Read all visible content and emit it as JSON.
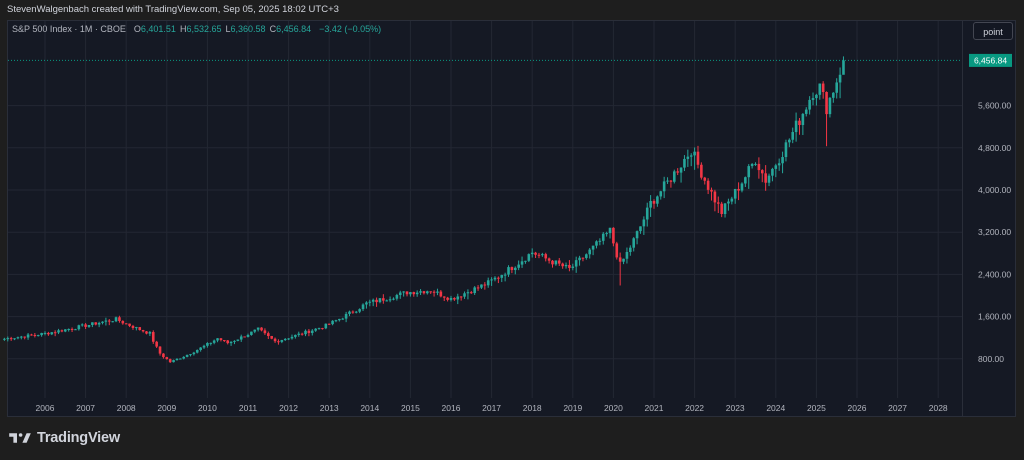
{
  "header": {
    "credit": "StevenWalgenbach created with TradingView.com, Sep 05, 2025 18:02 UTC+3"
  },
  "legend": {
    "symbol": "S&P 500 Index · 1M · CBOE",
    "open_label": "O",
    "open": "6,401.51",
    "high_label": "H",
    "high": "6,532.65",
    "low_label": "L",
    "low": "6,360.58",
    "close_label": "C",
    "close": "6,456.84",
    "change": "−3.42 (−0.05%)"
  },
  "toolbar": {
    "point_label": "point"
  },
  "brand": {
    "name": "TradingView"
  },
  "colors": {
    "up": "#26a69a",
    "down": "#f23645",
    "grid": "#232733",
    "pane_bg": "#151924",
    "axis_text": "#b2b5be",
    "last_price_bg": "#089981"
  },
  "chart_data": {
    "type": "candlestick",
    "title": "S&P 500 Index · 1M · CBOE",
    "interval": "1M",
    "last_price": 6456.84,
    "last_price_label": "6,456.84",
    "yaxis": {
      "ticks": [
        800,
        1600,
        2400,
        3200,
        4000,
        4800,
        5600
      ],
      "tick_labels": [
        "800.00",
        "1,600.00",
        "2,400.00",
        "3,200.00",
        "4,000.00",
        "4,800.00",
        "5,600.00"
      ],
      "range": [
        0,
        7600
      ],
      "position": "right"
    },
    "xaxis": {
      "tick_labels": [
        "2006",
        "2007",
        "2008",
        "2009",
        "2010",
        "2011",
        "2012",
        "2013",
        "2014",
        "2015",
        "2016",
        "2017",
        "2018",
        "2019",
        "2020",
        "2021",
        "2022",
        "2023",
        "2024",
        "2025",
        "2026",
        "2027",
        "2028"
      ],
      "range": [
        "2005-01",
        "2029-03"
      ]
    },
    "grid": true,
    "approx_monthly_closes_keypoints": [
      {
        "date": "2005-01",
        "value": 1180
      },
      {
        "date": "2006-01",
        "value": 1280
      },
      {
        "date": "2007-06",
        "value": 1500
      },
      {
        "date": "2007-10",
        "value": 1550
      },
      {
        "date": "2008-08",
        "value": 1280
      },
      {
        "date": "2008-11",
        "value": 900
      },
      {
        "date": "2009-02",
        "value": 740
      },
      {
        "date": "2010-04",
        "value": 1190
      },
      {
        "date": "2010-07",
        "value": 1100
      },
      {
        "date": "2011-04",
        "value": 1360
      },
      {
        "date": "2011-09",
        "value": 1130
      },
      {
        "date": "2012-12",
        "value": 1430
      },
      {
        "date": "2013-12",
        "value": 1850
      },
      {
        "date": "2014-12",
        "value": 2060
      },
      {
        "date": "2015-07",
        "value": 2100
      },
      {
        "date": "2016-01",
        "value": 1940
      },
      {
        "date": "2016-12",
        "value": 2240
      },
      {
        "date": "2018-01",
        "value": 2820
      },
      {
        "date": "2018-12",
        "value": 2500
      },
      {
        "date": "2019-12",
        "value": 3230
      },
      {
        "date": "2020-03",
        "value": 2580
      },
      {
        "date": "2020-12",
        "value": 3750
      },
      {
        "date": "2021-12",
        "value": 4770
      },
      {
        "date": "2022-09",
        "value": 3580
      },
      {
        "date": "2023-07",
        "value": 4590
      },
      {
        "date": "2023-10",
        "value": 4190
      },
      {
        "date": "2024-12",
        "value": 5880
      },
      {
        "date": "2025-02",
        "value": 5950
      },
      {
        "date": "2025-04",
        "value": 5570
      },
      {
        "date": "2025-09",
        "value": 6456
      }
    ]
  }
}
